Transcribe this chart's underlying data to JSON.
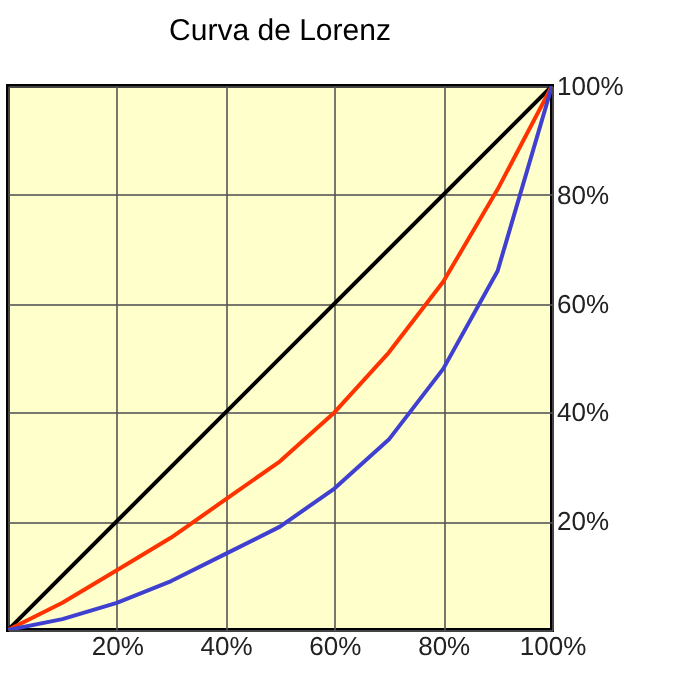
{
  "chart_data": {
    "type": "line",
    "title": "Curva de Lorenz",
    "x": [
      0,
      10,
      20,
      30,
      40,
      50,
      60,
      70,
      80,
      90,
      100
    ],
    "series": [
      {
        "color": "#000000",
        "x": [
          0,
          100
        ],
        "values": [
          0,
          100
        ]
      },
      {
        "color": "#ff3300",
        "values": [
          0,
          5,
          11,
          17,
          24,
          31,
          40,
          51,
          64,
          81,
          100
        ]
      },
      {
        "color": "#4040d0",
        "values": [
          0,
          2,
          5,
          9,
          14,
          19,
          26,
          35,
          48,
          66,
          100
        ]
      }
    ],
    "xlim": [
      0,
      100
    ],
    "ylim": [
      0,
      100
    ],
    "xticks": [
      {
        "value": 0,
        "label": null
      },
      {
        "value": 20,
        "label": "20%"
      },
      {
        "value": 40,
        "label": "40%"
      },
      {
        "value": 60,
        "label": "60%"
      },
      {
        "value": 80,
        "label": "80%"
      },
      {
        "value": 100,
        "label": "100%"
      }
    ],
    "yticks": [
      {
        "value": 0,
        "label": null
      },
      {
        "value": 20,
        "label": "20%"
      },
      {
        "value": 40,
        "label": "40%"
      },
      {
        "value": 60,
        "label": "60%"
      },
      {
        "value": 80,
        "label": "80%"
      },
      {
        "value": 100,
        "label": "100%"
      }
    ],
    "grid": true,
    "marker": "none",
    "line_style": "solid"
  }
}
